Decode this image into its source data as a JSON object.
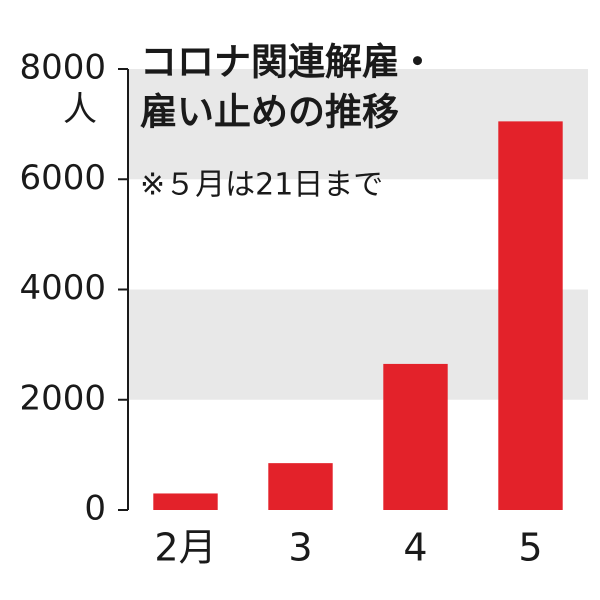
{
  "chart_data": {
    "type": "bar",
    "title_lines": [
      "コロナ関連解雇・",
      "雇い止めの推移"
    ],
    "subtitle": "※５月は21日まで",
    "y_unit_label": "人",
    "categories": [
      "2月",
      "3",
      "4",
      "5"
    ],
    "values": [
      300,
      850,
      2650,
      7050
    ],
    "color": "#e3222a",
    "band_color": "#e8e8e8",
    "grid": "alternating-bands",
    "ylim": [
      0,
      8000
    ],
    "yticks": [
      0,
      2000,
      4000,
      6000,
      8000
    ]
  }
}
